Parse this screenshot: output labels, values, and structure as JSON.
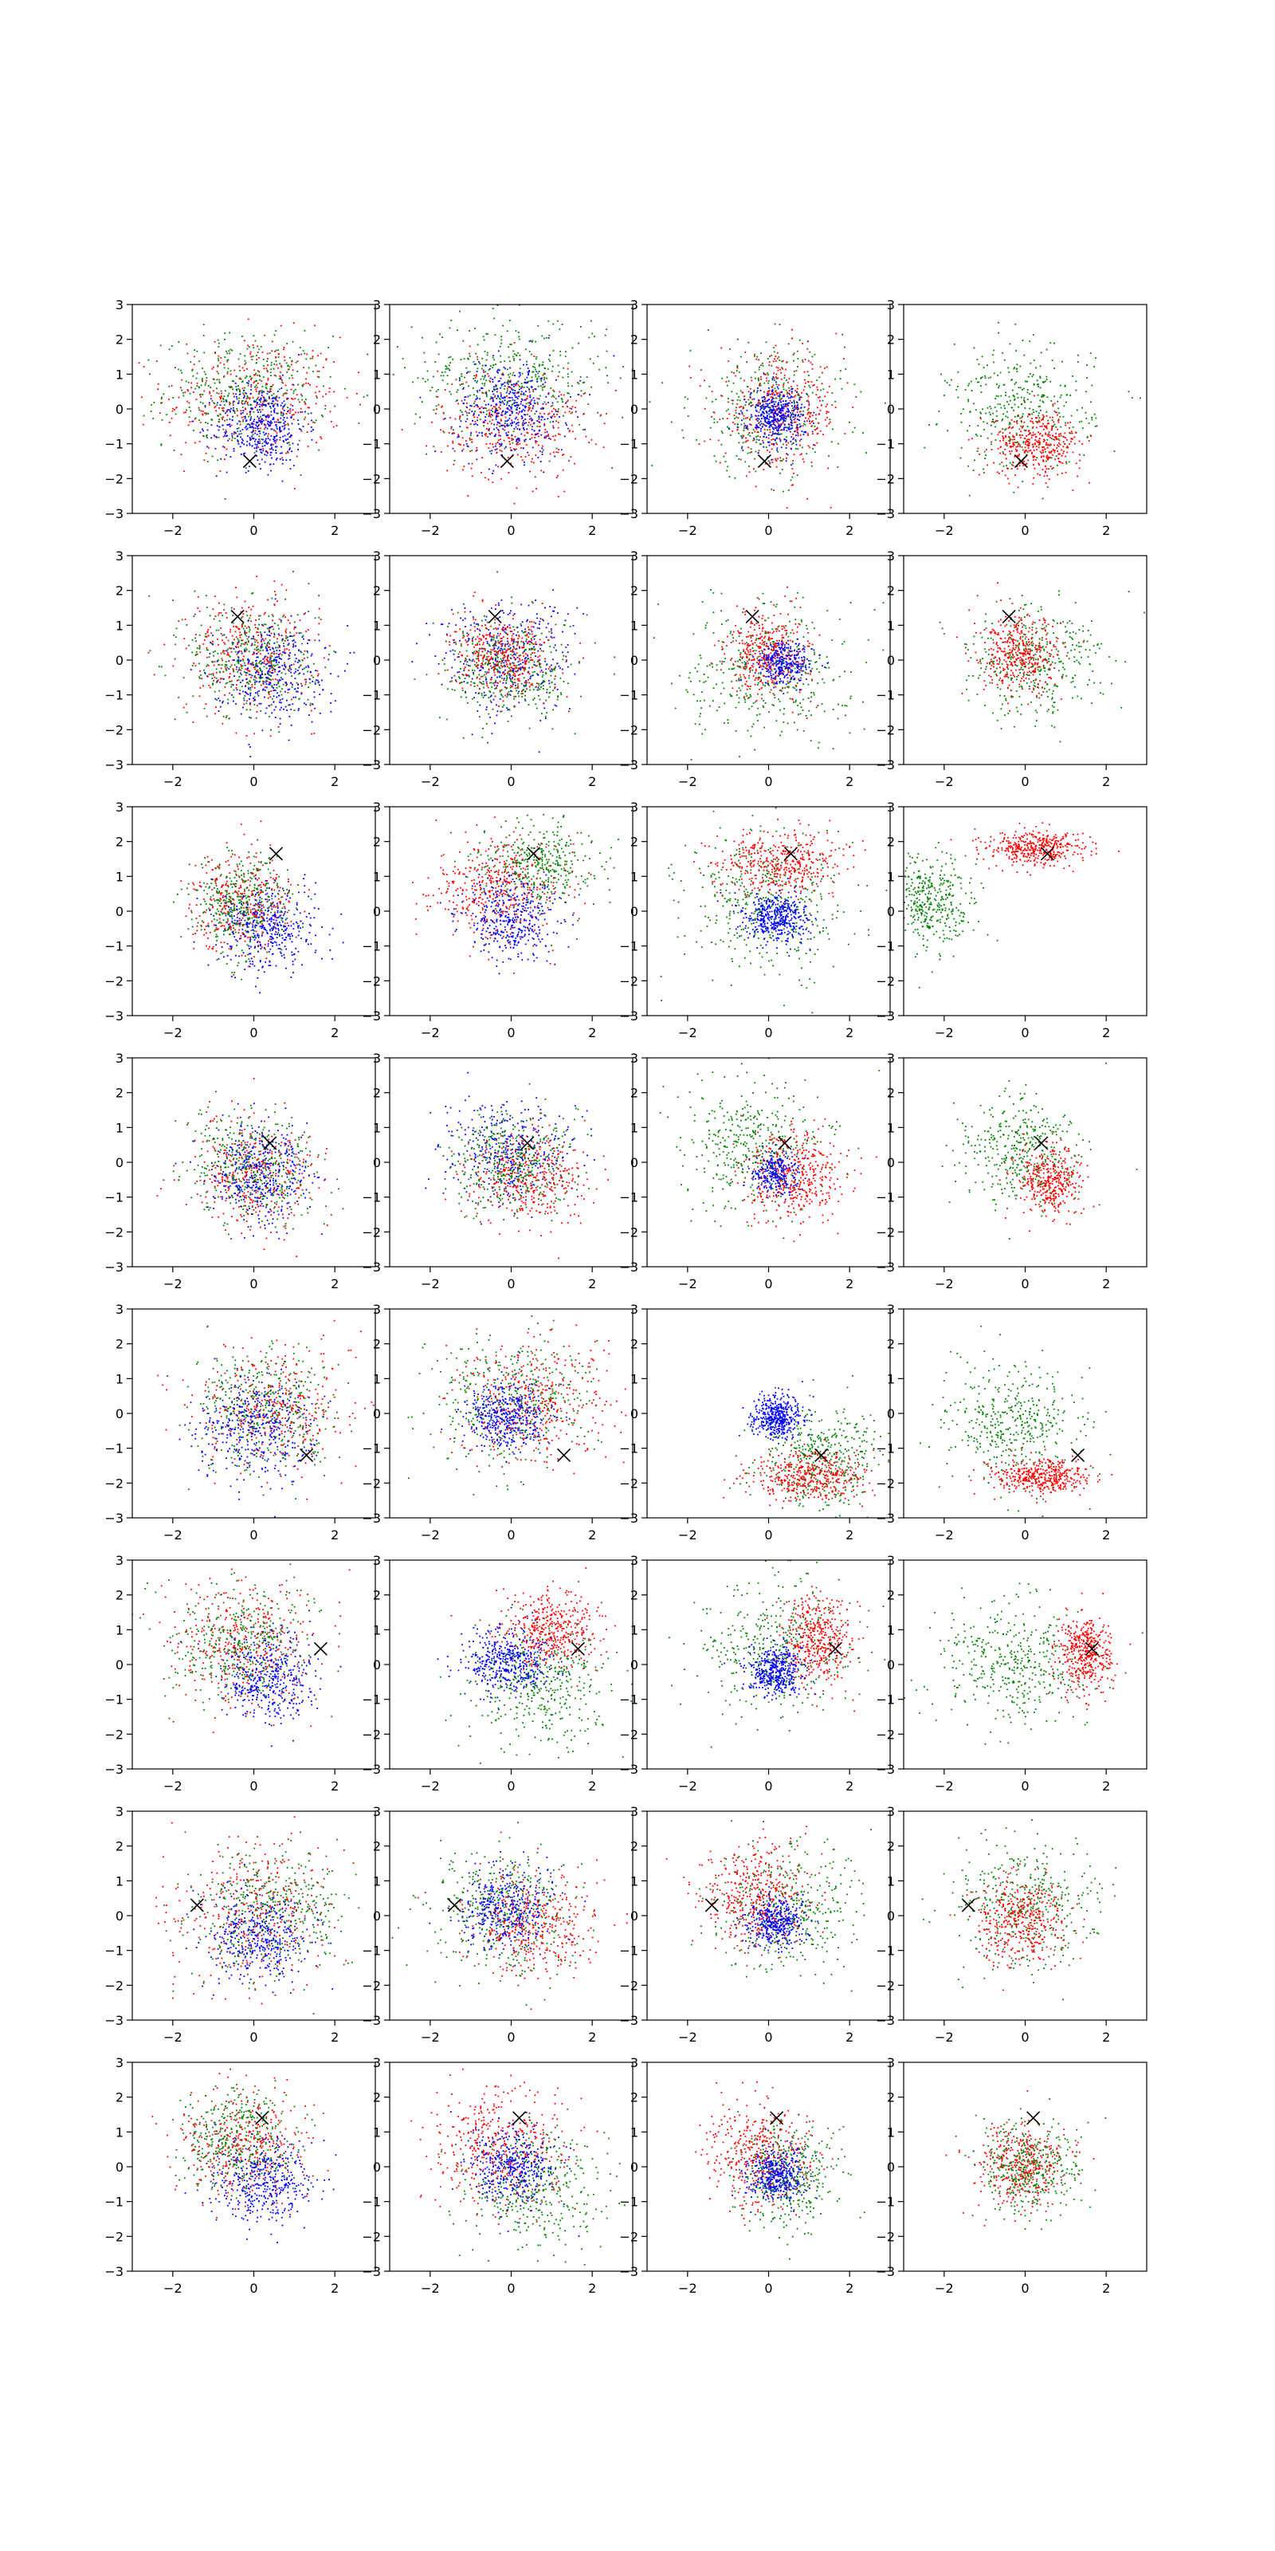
{
  "chart_data": {
    "type": "scatter",
    "layout": {
      "rows": 8,
      "cols": 4
    },
    "xlim": [
      -3,
      3
    ],
    "ylim": [
      -3,
      3
    ],
    "x_ticks": [
      -2,
      0,
      2
    ],
    "y_ticks": [
      -3,
      -2,
      -1,
      0,
      1,
      2,
      3
    ],
    "tick_labels": {
      "x": [
        "−2",
        "0",
        "2"
      ],
      "y": [
        "−3",
        "−2",
        "−1",
        "0",
        "1",
        "2",
        "3"
      ]
    },
    "grid": false,
    "legend": "none",
    "colors": {
      "red": "#ff0000",
      "green": "#008000",
      "blue": "#0000ff",
      "marker": "#000000"
    },
    "marker_symbol": "x",
    "rows": [
      {
        "marker": [
          -0.1,
          -1.5
        ],
        "panels": [
          [
            {
              "color": "red",
              "cx": 0.0,
              "cy": 0.3,
              "sx": 1.1,
              "sy": 0.9,
              "n": 400
            },
            {
              "color": "green",
              "cx": -0.2,
              "cy": 0.5,
              "sx": 1.0,
              "sy": 0.8,
              "n": 380
            },
            {
              "color": "blue",
              "cx": 0.2,
              "cy": -0.5,
              "sx": 0.55,
              "sy": 0.6,
              "n": 420
            }
          ],
          [
            {
              "color": "green",
              "cx": 0.0,
              "cy": 0.9,
              "sx": 1.2,
              "sy": 0.9,
              "n": 420
            },
            {
              "color": "red",
              "cx": 0.0,
              "cy": -0.4,
              "sx": 0.9,
              "sy": 0.8,
              "n": 380
            },
            {
              "color": "blue",
              "cx": 0.0,
              "cy": 0.0,
              "sx": 0.7,
              "sy": 0.7,
              "n": 420
            }
          ],
          [
            {
              "color": "green",
              "cx": 0.0,
              "cy": 0.0,
              "sx": 0.95,
              "sy": 0.95,
              "n": 350
            },
            {
              "color": "red",
              "cx": 0.3,
              "cy": -0.1,
              "sx": 0.75,
              "sy": 0.8,
              "n": 400
            },
            {
              "color": "blue",
              "cx": 0.2,
              "cy": -0.2,
              "sx": 0.35,
              "sy": 0.4,
              "n": 420
            }
          ],
          [
            {
              "color": "green",
              "cx": -0.1,
              "cy": 0.0,
              "sx": 0.9,
              "sy": 0.9,
              "n": 380
            },
            {
              "color": "red",
              "cx": 0.3,
              "cy": -1.0,
              "sx": 0.55,
              "sy": 0.45,
              "n": 400
            }
          ]
        ]
      },
      {
        "marker": [
          -0.4,
          1.25
        ],
        "panels": [
          [
            {
              "color": "red",
              "cx": -0.1,
              "cy": 0.2,
              "sx": 0.8,
              "sy": 0.85,
              "n": 380
            },
            {
              "color": "green",
              "cx": 0.0,
              "cy": 0.0,
              "sx": 0.8,
              "sy": 0.85,
              "n": 380
            },
            {
              "color": "blue",
              "cx": 0.4,
              "cy": -0.3,
              "sx": 0.7,
              "sy": 0.7,
              "n": 360
            }
          ],
          [
            {
              "color": "blue",
              "cx": -0.1,
              "cy": 0.1,
              "sx": 0.8,
              "sy": 0.8,
              "n": 380
            },
            {
              "color": "green",
              "cx": 0.0,
              "cy": -0.3,
              "sx": 0.8,
              "sy": 0.75,
              "n": 380
            },
            {
              "color": "red",
              "cx": -0.2,
              "cy": 0.1,
              "sx": 0.6,
              "sy": 0.55,
              "n": 400
            }
          ],
          [
            {
              "color": "green",
              "cx": 0.0,
              "cy": -0.3,
              "sx": 1.0,
              "sy": 1.0,
              "n": 400
            },
            {
              "color": "red",
              "cx": 0.0,
              "cy": 0.2,
              "sx": 0.5,
              "sy": 0.6,
              "n": 400
            },
            {
              "color": "blue",
              "cx": 0.4,
              "cy": -0.1,
              "sx": 0.35,
              "sy": 0.3,
              "n": 300
            }
          ],
          [
            {
              "color": "green",
              "cx": 0.2,
              "cy": 0.0,
              "sx": 0.85,
              "sy": 0.8,
              "n": 380
            },
            {
              "color": "red",
              "cx": -0.1,
              "cy": 0.1,
              "sx": 0.5,
              "sy": 0.55,
              "n": 400
            }
          ]
        ]
      },
      {
        "marker": [
          0.55,
          1.65
        ],
        "panels": [
          [
            {
              "color": "red",
              "cx": -0.3,
              "cy": 0.3,
              "sx": 0.6,
              "sy": 0.7,
              "n": 380
            },
            {
              "color": "green",
              "cx": -0.3,
              "cy": 0.2,
              "sx": 0.6,
              "sy": 0.7,
              "n": 380
            },
            {
              "color": "blue",
              "cx": 0.4,
              "cy": -0.5,
              "sx": 0.6,
              "sy": 0.6,
              "n": 380
            }
          ],
          [
            {
              "color": "green",
              "cx": 0.7,
              "cy": 1.4,
              "sx": 0.7,
              "sy": 0.6,
              "n": 380
            },
            {
              "color": "red",
              "cx": -0.3,
              "cy": 0.6,
              "sx": 0.8,
              "sy": 0.7,
              "n": 420
            },
            {
              "color": "blue",
              "cx": 0.0,
              "cy": -0.2,
              "sx": 0.6,
              "sy": 0.6,
              "n": 380
            }
          ],
          [
            {
              "color": "green",
              "cx": -0.1,
              "cy": 0.2,
              "sx": 1.0,
              "sy": 1.0,
              "n": 400
            },
            {
              "color": "red",
              "cx": 0.3,
              "cy": 1.4,
              "sx": 0.75,
              "sy": 0.45,
              "n": 420
            },
            {
              "color": "blue",
              "cx": 0.2,
              "cy": -0.2,
              "sx": 0.4,
              "sy": 0.35,
              "n": 420
            }
          ],
          [
            {
              "color": "green",
              "cx": -2.4,
              "cy": 0.2,
              "sx": 0.55,
              "sy": 0.7,
              "n": 400
            },
            {
              "color": "red",
              "cx": 0.3,
              "cy": 1.8,
              "sx": 0.6,
              "sy": 0.25,
              "n": 420
            }
          ]
        ]
      },
      {
        "marker": [
          0.4,
          0.55
        ],
        "panels": [
          [
            {
              "color": "red",
              "cx": 0.0,
              "cy": -0.3,
              "sx": 0.8,
              "sy": 0.8,
              "n": 380
            },
            {
              "color": "green",
              "cx": 0.0,
              "cy": -0.2,
              "sx": 0.8,
              "sy": 0.8,
              "n": 380
            },
            {
              "color": "blue",
              "cx": 0.2,
              "cy": -0.3,
              "sx": 0.6,
              "sy": 0.65,
              "n": 380
            }
          ],
          [
            {
              "color": "blue",
              "cx": -0.1,
              "cy": 0.3,
              "sx": 0.75,
              "sy": 0.7,
              "n": 380
            },
            {
              "color": "red",
              "cx": 0.4,
              "cy": -0.4,
              "sx": 0.75,
              "sy": 0.65,
              "n": 400
            },
            {
              "color": "green",
              "cx": 0.0,
              "cy": 0.0,
              "sx": 0.8,
              "sy": 0.75,
              "n": 360
            }
          ],
          [
            {
              "color": "green",
              "cx": -0.3,
              "cy": 0.5,
              "sx": 0.9,
              "sy": 0.9,
              "n": 400
            },
            {
              "color": "red",
              "cx": 0.6,
              "cy": -0.4,
              "sx": 0.6,
              "sy": 0.65,
              "n": 420
            },
            {
              "color": "blue",
              "cx": 0.2,
              "cy": -0.3,
              "sx": 0.3,
              "sy": 0.3,
              "n": 250
            }
          ],
          [
            {
              "color": "green",
              "cx": -0.2,
              "cy": 0.3,
              "sx": 0.7,
              "sy": 0.8,
              "n": 380
            },
            {
              "color": "red",
              "cx": 0.6,
              "cy": -0.5,
              "sx": 0.4,
              "sy": 0.5,
              "n": 380
            }
          ]
        ]
      },
      {
        "marker": [
          1.3,
          -1.2
        ],
        "panels": [
          [
            {
              "color": "red",
              "cx": 0.4,
              "cy": 0.1,
              "sx": 0.9,
              "sy": 0.9,
              "n": 380
            },
            {
              "color": "green",
              "cx": 0.3,
              "cy": 0.1,
              "sx": 0.9,
              "sy": 0.9,
              "n": 380
            },
            {
              "color": "blue",
              "cx": 0.0,
              "cy": -0.5,
              "sx": 0.7,
              "sy": 0.7,
              "n": 380
            }
          ],
          [
            {
              "color": "green",
              "cx": 0.0,
              "cy": 0.3,
              "sx": 1.0,
              "sy": 1.0,
              "n": 380
            },
            {
              "color": "red",
              "cx": 0.5,
              "cy": 0.3,
              "sx": 0.9,
              "sy": 0.9,
              "n": 400
            },
            {
              "color": "blue",
              "cx": -0.1,
              "cy": -0.1,
              "sx": 0.5,
              "sy": 0.5,
              "n": 420
            }
          ],
          [
            {
              "color": "green",
              "cx": 1.3,
              "cy": -1.3,
              "sx": 0.75,
              "sy": 0.75,
              "n": 420
            },
            {
              "color": "red",
              "cx": 1.0,
              "cy": -1.8,
              "sx": 0.7,
              "sy": 0.35,
              "n": 420
            },
            {
              "color": "blue",
              "cx": 0.2,
              "cy": -0.1,
              "sx": 0.32,
              "sy": 0.3,
              "n": 420
            }
          ],
          [
            {
              "color": "green",
              "cx": -0.3,
              "cy": -0.3,
              "sx": 0.85,
              "sy": 0.85,
              "n": 420
            },
            {
              "color": "red",
              "cx": 0.4,
              "cy": -1.8,
              "sx": 0.55,
              "sy": 0.25,
              "n": 420
            }
          ]
        ]
      },
      {
        "marker": [
          1.65,
          0.45
        ],
        "panels": [
          [
            {
              "color": "red",
              "cx": -0.2,
              "cy": 0.6,
              "sx": 0.9,
              "sy": 0.85,
              "n": 380
            },
            {
              "color": "green",
              "cx": -0.4,
              "cy": 0.6,
              "sx": 0.85,
              "sy": 0.85,
              "n": 380
            },
            {
              "color": "blue",
              "cx": 0.4,
              "cy": -0.4,
              "sx": 0.6,
              "sy": 0.65,
              "n": 400
            }
          ],
          [
            {
              "color": "green",
              "cx": 0.7,
              "cy": -0.6,
              "sx": 0.85,
              "sy": 0.85,
              "n": 420
            },
            {
              "color": "red",
              "cx": 1.0,
              "cy": 1.0,
              "sx": 0.6,
              "sy": 0.55,
              "n": 420
            },
            {
              "color": "blue",
              "cx": -0.1,
              "cy": 0.1,
              "sx": 0.5,
              "sy": 0.5,
              "n": 420
            }
          ],
          [
            {
              "color": "green",
              "cx": 0.2,
              "cy": 0.4,
              "sx": 0.9,
              "sy": 0.95,
              "n": 400
            },
            {
              "color": "red",
              "cx": 1.2,
              "cy": 0.6,
              "sx": 0.45,
              "sy": 0.6,
              "n": 420
            },
            {
              "color": "blue",
              "cx": 0.2,
              "cy": -0.2,
              "sx": 0.33,
              "sy": 0.35,
              "n": 400
            }
          ],
          [
            {
              "color": "green",
              "cx": -0.2,
              "cy": 0.0,
              "sx": 0.95,
              "sy": 0.9,
              "n": 420
            },
            {
              "color": "red",
              "cx": 1.5,
              "cy": 0.3,
              "sx": 0.35,
              "sy": 0.55,
              "n": 420
            }
          ]
        ]
      },
      {
        "marker": [
          -1.4,
          0.3
        ],
        "panels": [
          [
            {
              "color": "red",
              "cx": 0.0,
              "cy": 0.2,
              "sx": 1.0,
              "sy": 1.0,
              "n": 360
            },
            {
              "color": "green",
              "cx": 0.4,
              "cy": 0.1,
              "sx": 0.95,
              "sy": 0.95,
              "n": 380
            },
            {
              "color": "blue",
              "cx": 0.1,
              "cy": -0.6,
              "sx": 0.65,
              "sy": 0.65,
              "n": 400
            }
          ],
          [
            {
              "color": "green",
              "cx": -0.2,
              "cy": 0.2,
              "sx": 0.85,
              "sy": 0.9,
              "n": 380
            },
            {
              "color": "red",
              "cx": 0.6,
              "cy": -0.2,
              "sx": 0.8,
              "sy": 0.75,
              "n": 400
            },
            {
              "color": "blue",
              "cx": -0.1,
              "cy": 0.2,
              "sx": 0.6,
              "sy": 0.6,
              "n": 380
            }
          ],
          [
            {
              "color": "green",
              "cx": 0.4,
              "cy": 0.1,
              "sx": 0.9,
              "sy": 0.9,
              "n": 380
            },
            {
              "color": "red",
              "cx": -0.3,
              "cy": 0.6,
              "sx": 0.65,
              "sy": 0.75,
              "n": 400
            },
            {
              "color": "blue",
              "cx": 0.2,
              "cy": -0.2,
              "sx": 0.35,
              "sy": 0.35,
              "n": 380
            }
          ],
          [
            {
              "color": "green",
              "cx": 0.0,
              "cy": 0.3,
              "sx": 0.9,
              "sy": 0.9,
              "n": 400
            },
            {
              "color": "red",
              "cx": -0.1,
              "cy": -0.1,
              "sx": 0.55,
              "sy": 0.6,
              "n": 400
            }
          ]
        ]
      },
      {
        "marker": [
          0.2,
          1.4
        ],
        "panels": [
          [
            {
              "color": "red",
              "cx": -0.3,
              "cy": 0.7,
              "sx": 0.75,
              "sy": 0.75,
              "n": 380
            },
            {
              "color": "green",
              "cx": -0.4,
              "cy": 0.8,
              "sx": 0.7,
              "sy": 0.75,
              "n": 380
            },
            {
              "color": "blue",
              "cx": 0.3,
              "cy": -0.4,
              "sx": 0.6,
              "sy": 0.6,
              "n": 400
            }
          ],
          [
            {
              "color": "green",
              "cx": 0.6,
              "cy": -0.6,
              "sx": 0.85,
              "sy": 0.8,
              "n": 380
            },
            {
              "color": "red",
              "cx": -0.3,
              "cy": 0.5,
              "sx": 0.85,
              "sy": 0.85,
              "n": 420
            },
            {
              "color": "blue",
              "cx": 0.0,
              "cy": 0.0,
              "sx": 0.55,
              "sy": 0.55,
              "n": 400
            }
          ],
          [
            {
              "color": "red",
              "cx": -0.2,
              "cy": 0.3,
              "sx": 0.65,
              "sy": 0.7,
              "n": 420
            },
            {
              "color": "green",
              "cx": 0.5,
              "cy": -0.3,
              "sx": 0.6,
              "sy": 0.7,
              "n": 380
            },
            {
              "color": "blue",
              "cx": 0.2,
              "cy": -0.3,
              "sx": 0.35,
              "sy": 0.35,
              "n": 380
            }
          ],
          [
            {
              "color": "red",
              "cx": -0.1,
              "cy": 0.0,
              "sx": 0.55,
              "sy": 0.6,
              "n": 400
            },
            {
              "color": "green",
              "cx": 0.1,
              "cy": 0.0,
              "sx": 0.6,
              "sy": 0.65,
              "n": 380
            }
          ]
        ]
      }
    ]
  }
}
